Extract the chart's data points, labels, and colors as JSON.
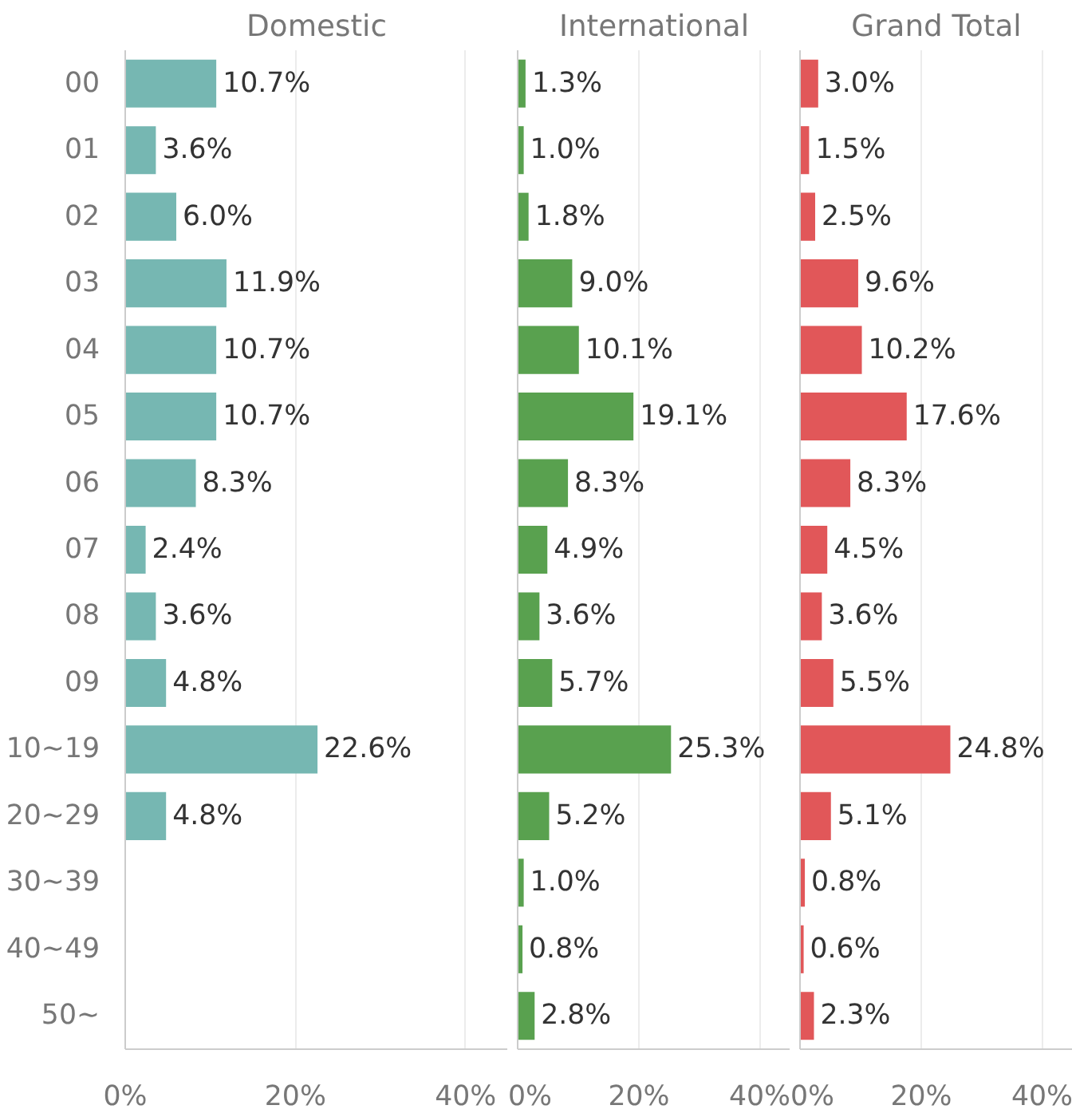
{
  "chart_data": [
    {
      "type": "bar",
      "orientation": "horizontal",
      "title": "Domestic",
      "categories": [
        "00",
        "01",
        "02",
        "03",
        "04",
        "05",
        "06",
        "07",
        "08",
        "09",
        "10~19",
        "20~29",
        "30~39",
        "40~49",
        "50~"
      ],
      "series": [
        {
          "color": "#76b7b2",
          "values": [
            10.7,
            3.6,
            6.0,
            11.9,
            10.7,
            10.7,
            8.3,
            2.4,
            3.6,
            4.8,
            22.6,
            4.8,
            null,
            null,
            null
          ],
          "value_labels": [
            "10.7%",
            "3.6%",
            "6.0%",
            "11.9%",
            "10.7%",
            "10.7%",
            "8.3%",
            "2.4%",
            "3.6%",
            "4.8%",
            "22.6%",
            "4.8%",
            null,
            null,
            null
          ]
        }
      ],
      "xlim": [
        0,
        45
      ],
      "xticks": [
        {
          "value": 0,
          "label": "0%"
        },
        {
          "value": 20,
          "label": "20%"
        },
        {
          "value": 40,
          "label": "40%"
        }
      ],
      "grid": "x"
    },
    {
      "type": "bar",
      "orientation": "horizontal",
      "title": "International",
      "series": [
        {
          "color": "#59a14f",
          "values": [
            1.3,
            1.0,
            1.8,
            9.0,
            10.1,
            19.1,
            8.3,
            4.9,
            3.6,
            5.7,
            25.3,
            5.2,
            1.0,
            0.8,
            2.8
          ],
          "value_labels": [
            "1.3%",
            "1.0%",
            "1.8%",
            "9.0%",
            "10.1%",
            "19.1%",
            "8.3%",
            "4.9%",
            "3.6%",
            "5.7%",
            "25.3%",
            "5.2%",
            "1.0%",
            "0.8%",
            "2.8%"
          ]
        }
      ],
      "xlim": [
        0,
        45
      ],
      "xticks": [
        {
          "value": 0,
          "label": "0%"
        },
        {
          "value": 20,
          "label": "20%"
        },
        {
          "value": 40,
          "label": "40%"
        }
      ],
      "grid": "x",
      "tick_labels": "x"
    },
    {
      "type": "bar",
      "orientation": "horizontal",
      "title": "Grand Total",
      "series": [
        {
          "color": "#e15759",
          "values": [
            3.0,
            1.5,
            2.5,
            9.6,
            10.2,
            17.6,
            8.3,
            4.5,
            3.6,
            5.5,
            24.8,
            5.1,
            0.8,
            0.6,
            2.3
          ],
          "value_labels": [
            "3.0%",
            "1.5%",
            "2.5%",
            "9.6%",
            "10.2%",
            "17.6%",
            "8.3%",
            "4.5%",
            "3.6%",
            "5.5%",
            "24.8%",
            "5.1%",
            "0.8%",
            "0.6%",
            "2.3%"
          ]
        }
      ],
      "xlim": [
        0,
        45
      ],
      "xticks": [
        {
          "value": 0,
          "label": "0%"
        },
        {
          "value": 20,
          "label": "20%"
        },
        {
          "value": 40,
          "label": "40%"
        }
      ],
      "grid": "x",
      "tick_labels": "x"
    }
  ]
}
